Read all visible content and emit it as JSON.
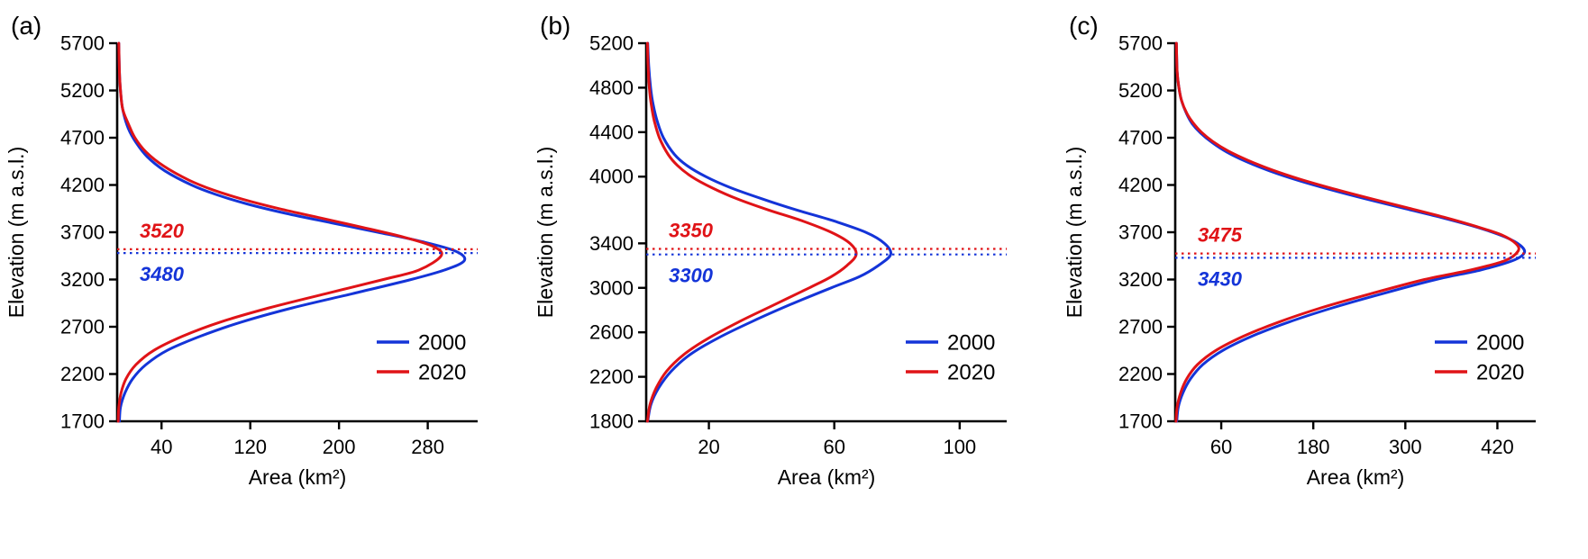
{
  "figure": {
    "background": "#ffffff",
    "axis_color": "#000000",
    "text_color": "#000000",
    "series_colors": {
      "2000": "#1434d8",
      "2020": "#e01317"
    }
  },
  "chart_data": [
    {
      "type": "line",
      "panel_label": "(a)",
      "xlabel": "Area (km²)",
      "ylabel": "Elevation (m a.s.l.)",
      "xlim": [
        0,
        325
      ],
      "ylim": [
        1700,
        5700
      ],
      "xticks": [
        40,
        120,
        200,
        280
      ],
      "yticks": [
        5700,
        5200,
        4700,
        4200,
        3700,
        3200,
        2700,
        2200,
        1700
      ],
      "legend": [
        {
          "series": "2000",
          "label": "2000"
        },
        {
          "series": "2020",
          "label": "2020"
        }
      ],
      "medians": [
        {
          "series": "2020",
          "value": 3520,
          "label": "3520",
          "label_position": "above"
        },
        {
          "series": "2000",
          "value": 3480,
          "label": "3480",
          "label_position": "below"
        }
      ],
      "series": [
        {
          "name": "2000",
          "points": [
            [
              1700,
              2
            ],
            [
              1850,
              3
            ],
            [
              2000,
              7
            ],
            [
              2150,
              14
            ],
            [
              2300,
              26
            ],
            [
              2450,
              45
            ],
            [
              2600,
              75
            ],
            [
              2750,
              112
            ],
            [
              2900,
              158
            ],
            [
              3050,
              212
            ],
            [
              3200,
              265
            ],
            [
              3300,
              295
            ],
            [
              3400,
              313
            ],
            [
              3500,
              305
            ],
            [
              3600,
              275
            ],
            [
              3700,
              235
            ],
            [
              3800,
              193
            ],
            [
              3900,
              152
            ],
            [
              4000,
              117
            ],
            [
              4100,
              89
            ],
            [
              4200,
              67
            ],
            [
              4350,
              43
            ],
            [
              4500,
              27
            ],
            [
              4650,
              17
            ],
            [
              4800,
              10
            ],
            [
              5000,
              5
            ],
            [
              5200,
              3
            ],
            [
              5400,
              2
            ],
            [
              5700,
              1.5
            ]
          ]
        },
        {
          "name": "2020",
          "points": [
            [
              1700,
              1
            ],
            [
              1850,
              1.5
            ],
            [
              2000,
              3.5
            ],
            [
              2150,
              8
            ],
            [
              2300,
              17
            ],
            [
              2450,
              33
            ],
            [
              2600,
              59
            ],
            [
              2750,
              93
            ],
            [
              2900,
              137
            ],
            [
              3050,
              188
            ],
            [
              3200,
              240
            ],
            [
              3300,
              272
            ],
            [
              3450,
              292
            ],
            [
              3550,
              285
            ],
            [
              3650,
              258
            ],
            [
              3750,
              222
            ],
            [
              3850,
              184
            ],
            [
              3950,
              146
            ],
            [
              4050,
              113
            ],
            [
              4150,
              86
            ],
            [
              4250,
              65
            ],
            [
              4400,
              42
            ],
            [
              4550,
              26
            ],
            [
              4700,
              16
            ],
            [
              4850,
              10
            ],
            [
              5000,
              5
            ],
            [
              5200,
              3
            ],
            [
              5400,
              2
            ],
            [
              5700,
              1.5
            ]
          ]
        }
      ]
    },
    {
      "type": "line",
      "panel_label": "(b)",
      "xlabel": "Area (km²)",
      "ylabel": "Elevation (m a.s.l.)",
      "xlim": [
        0,
        115
      ],
      "ylim": [
        1800,
        5200
      ],
      "xticks": [
        20,
        60,
        100
      ],
      "yticks": [
        5200,
        4800,
        4400,
        4000,
        3400,
        3000,
        2600,
        2200,
        1800
      ],
      "legend": [
        {
          "series": "2000",
          "label": "2000"
        },
        {
          "series": "2020",
          "label": "2020"
        }
      ],
      "medians": [
        {
          "series": "2020",
          "value": 3350,
          "label": "3350",
          "label_position": "above"
        },
        {
          "series": "2000",
          "value": 3300,
          "label": "3300",
          "label_position": "below"
        }
      ],
      "series": [
        {
          "name": "2000",
          "points": [
            [
              1800,
              0.5
            ],
            [
              1950,
              1.5
            ],
            [
              2100,
              4
            ],
            [
              2250,
              8
            ],
            [
              2400,
              14
            ],
            [
              2550,
              23
            ],
            [
              2700,
              34
            ],
            [
              2850,
              46
            ],
            [
              3000,
              59
            ],
            [
              3100,
              68
            ],
            [
              3200,
              74
            ],
            [
              3300,
              78
            ],
            [
              3400,
              76
            ],
            [
              3500,
              70
            ],
            [
              3600,
              60
            ],
            [
              3700,
              48
            ],
            [
              3800,
              37
            ],
            [
              3900,
              27
            ],
            [
              4000,
              19
            ],
            [
              4100,
              13
            ],
            [
              4200,
              9
            ],
            [
              4350,
              5.5
            ],
            [
              4500,
              3.5
            ],
            [
              4650,
              2.2
            ],
            [
              4800,
              1.4
            ],
            [
              5000,
              0.8
            ],
            [
              5200,
              0.5
            ]
          ]
        },
        {
          "name": "2020",
          "points": [
            [
              1800,
              0.4
            ],
            [
              1950,
              1.2
            ],
            [
              2100,
              3.2
            ],
            [
              2250,
              6.5
            ],
            [
              2400,
              12
            ],
            [
              2550,
              20
            ],
            [
              2700,
              30
            ],
            [
              2850,
              41
            ],
            [
              3000,
              52
            ],
            [
              3100,
              59
            ],
            [
              3200,
              64
            ],
            [
              3300,
              67
            ],
            [
              3400,
              65
            ],
            [
              3500,
              59
            ],
            [
              3600,
              50
            ],
            [
              3700,
              39
            ],
            [
              3800,
              29
            ],
            [
              3900,
              21
            ],
            [
              4000,
              14.5
            ],
            [
              4100,
              10
            ],
            [
              4200,
              7
            ],
            [
              4350,
              4.2
            ],
            [
              4500,
              2.6
            ],
            [
              4650,
              1.6
            ],
            [
              4800,
              1
            ],
            [
              5000,
              0.6
            ],
            [
              5200,
              0.4
            ]
          ]
        }
      ]
    },
    {
      "type": "line",
      "panel_label": "(c)",
      "xlabel": "Area (km²)",
      "ylabel": "Elevation (m a.s.l.)",
      "xlim": [
        0,
        470
      ],
      "ylim": [
        1700,
        5700
      ],
      "xticks": [
        60,
        180,
        300,
        420
      ],
      "yticks": [
        5700,
        5200,
        4700,
        4200,
        3700,
        3200,
        2700,
        2200,
        1700
      ],
      "legend": [
        {
          "series": "2000",
          "label": "2000"
        },
        {
          "series": "2020",
          "label": "2020"
        }
      ],
      "medians": [
        {
          "series": "2020",
          "value": 3475,
          "label": "3475",
          "label_position": "above"
        },
        {
          "series": "2000",
          "value": 3430,
          "label": "3430",
          "label_position": "below"
        }
      ],
      "series": [
        {
          "name": "2000",
          "points": [
            [
              1700,
              2
            ],
            [
              1850,
              4
            ],
            [
              2000,
              10
            ],
            [
              2150,
              20
            ],
            [
              2300,
              36
            ],
            [
              2450,
              62
            ],
            [
              2600,
              100
            ],
            [
              2750,
              148
            ],
            [
              2900,
              205
            ],
            [
              3050,
              270
            ],
            [
              3200,
              340
            ],
            [
              3300,
              398
            ],
            [
              3400,
              440
            ],
            [
              3480,
              455
            ],
            [
              3560,
              450
            ],
            [
              3650,
              430
            ],
            [
              3750,
              395
            ],
            [
              3850,
              350
            ],
            [
              3950,
              300
            ],
            [
              4050,
              250
            ],
            [
              4150,
              203
            ],
            [
              4250,
              160
            ],
            [
              4350,
              123
            ],
            [
              4450,
              92
            ],
            [
              4550,
              67
            ],
            [
              4650,
              48
            ],
            [
              4750,
              33
            ],
            [
              4850,
              22
            ],
            [
              4950,
              15
            ],
            [
              5100,
              8
            ],
            [
              5250,
              4.5
            ],
            [
              5400,
              2.5
            ],
            [
              5700,
              1.5
            ]
          ]
        },
        {
          "name": "2020",
          "points": [
            [
              1700,
              1
            ],
            [
              1850,
              2.5
            ],
            [
              2000,
              7
            ],
            [
              2150,
              15
            ],
            [
              2300,
              29
            ],
            [
              2450,
              53
            ],
            [
              2600,
              89
            ],
            [
              2750,
              135
            ],
            [
              2900,
              190
            ],
            [
              3050,
              255
            ],
            [
              3200,
              325
            ],
            [
              3300,
              385
            ],
            [
              3400,
              430
            ],
            [
              3500,
              447
            ],
            [
              3580,
              444
            ],
            [
              3670,
              426
            ],
            [
              3760,
              393
            ],
            [
              3860,
              350
            ],
            [
              3960,
              302
            ],
            [
              4060,
              253
            ],
            [
              4160,
              206
            ],
            [
              4260,
              163
            ],
            [
              4360,
              126
            ],
            [
              4460,
              95
            ],
            [
              4560,
              69
            ],
            [
              4660,
              49
            ],
            [
              4760,
              34
            ],
            [
              4860,
              23
            ],
            [
              4960,
              15
            ],
            [
              5100,
              8
            ],
            [
              5250,
              4.5
            ],
            [
              5400,
              2.5
            ],
            [
              5700,
              1.5
            ]
          ]
        }
      ]
    }
  ]
}
